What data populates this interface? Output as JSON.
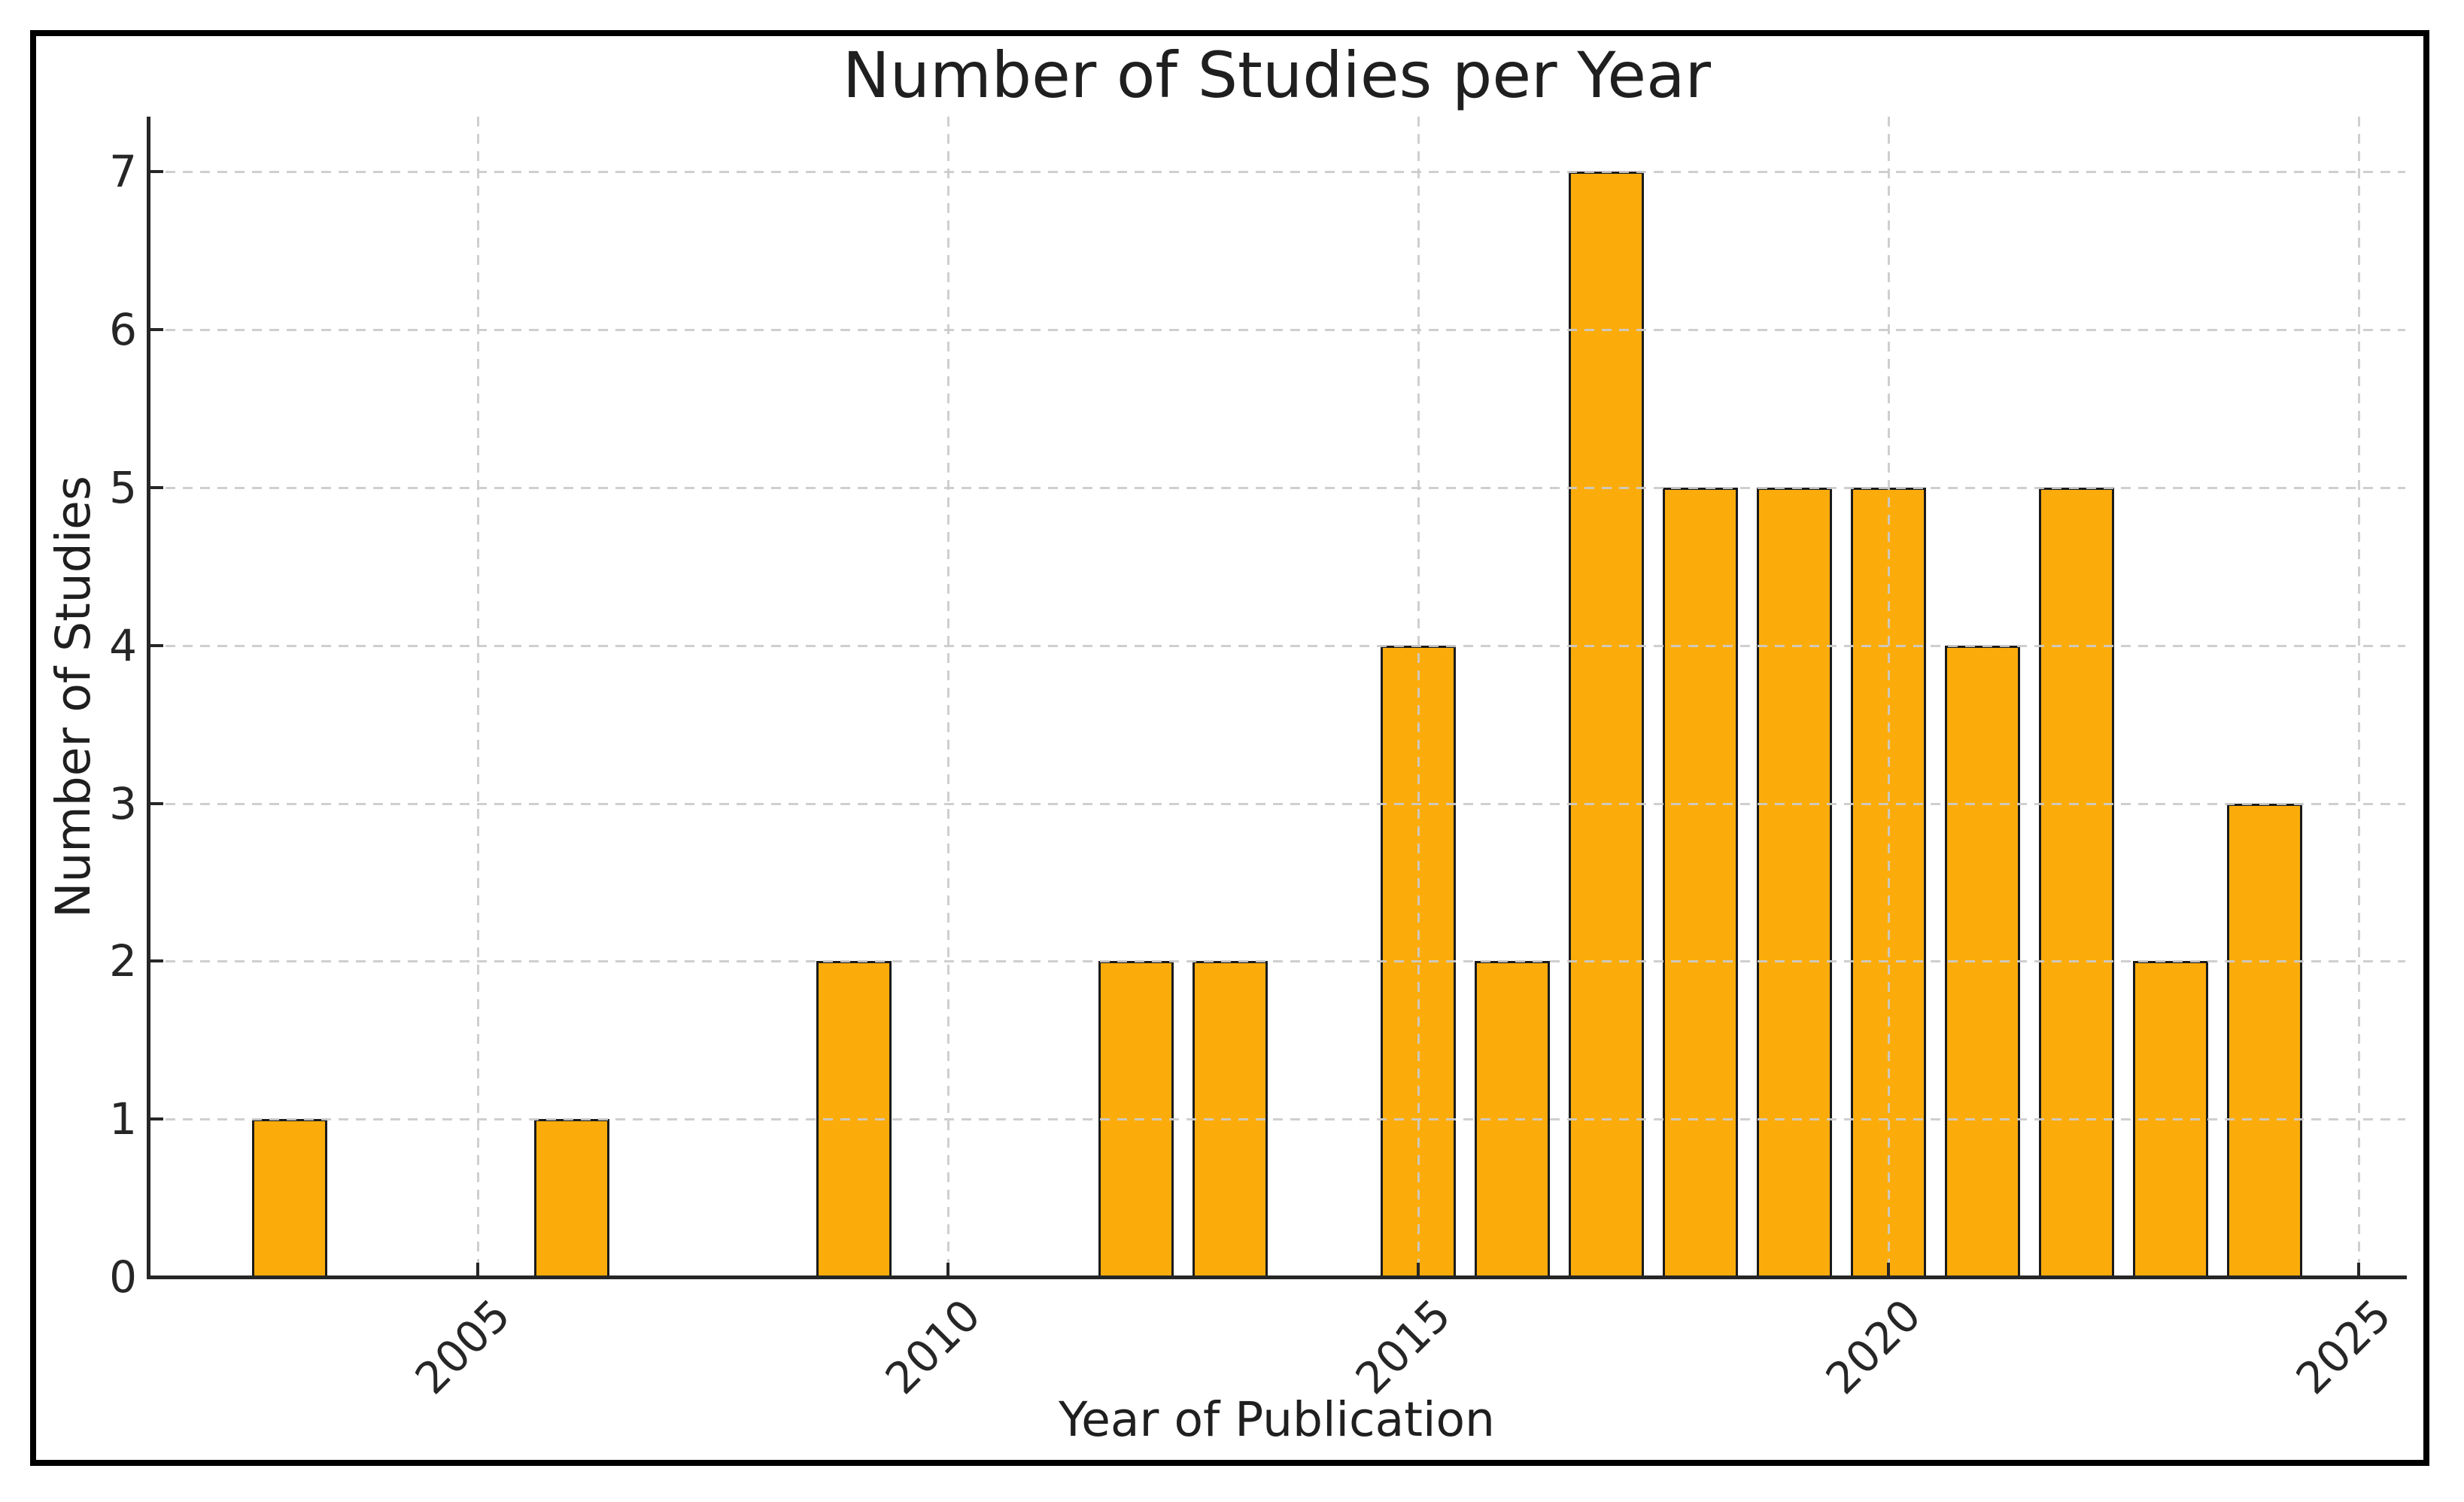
{
  "figure": {
    "title": "Number of Studies per Year",
    "xlabel": "Year of Publication",
    "ylabel": "Number of Studies"
  },
  "chart_data": {
    "type": "bar",
    "title": "Number of Studies per Year",
    "xlabel": "Year of Publication",
    "ylabel": "Number of Studies",
    "x": [
      2003,
      2006,
      2009,
      2012,
      2013,
      2015,
      2016,
      2017,
      2018,
      2019,
      2020,
      2021,
      2022,
      2023,
      2024
    ],
    "values": [
      1,
      1,
      2,
      2,
      2,
      4,
      2,
      7,
      5,
      5,
      5,
      4,
      5,
      2,
      3
    ],
    "xlim": [
      2001.5,
      2025.5
    ],
    "ylim": [
      0,
      7.35
    ],
    "xticks": [
      2005,
      2010,
      2015,
      2020,
      2025
    ],
    "xtick_rotation_deg": 45,
    "yticks": [
      0,
      1,
      2,
      3,
      4,
      5,
      6,
      7
    ],
    "bar_width_years": 0.8,
    "grid": "both, dashed, drawn above bars",
    "legend": "none",
    "colors": {
      "bar_fill": "#FCAC0A",
      "bar_edge": "#1b1b1b",
      "grid": "#cbcbcb",
      "spine": "#262626",
      "text": "#262626",
      "figure_border": "#000000",
      "background": "#ffffff"
    }
  }
}
